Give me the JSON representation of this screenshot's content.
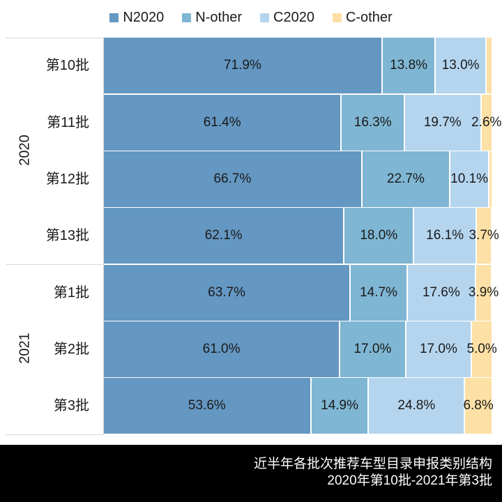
{
  "chart_data": {
    "type": "bar",
    "orientation": "horizontal",
    "stacked": "percent",
    "title": "近半年各批次推荐车型目录申报类别结构",
    "subtitle": "2020年第10批-2021年第3批",
    "groups": [
      {
        "year": "2020",
        "categories": [
          "第10批",
          "第11批",
          "第12批",
          "第13批"
        ]
      },
      {
        "year": "2021",
        "categories": [
          "第1批",
          "第2批",
          "第3批"
        ]
      }
    ],
    "categories": [
      "第10批",
      "第11批",
      "第12批",
      "第13批",
      "第1批",
      "第2批",
      "第3批"
    ],
    "series": [
      {
        "name": "N2020",
        "color": "#6497c2",
        "values": [
          71.9,
          61.4,
          66.7,
          62.1,
          63.7,
          61.0,
          53.6
        ]
      },
      {
        "name": "N-other",
        "color": "#7fb6d3",
        "values": [
          13.8,
          16.3,
          22.7,
          18.0,
          14.7,
          17.0,
          14.9
        ]
      },
      {
        "name": "C2020",
        "color": "#b5d5ef",
        "values": [
          13.0,
          19.7,
          10.1,
          16.1,
          17.6,
          17.0,
          24.8
        ]
      },
      {
        "name": "C-other",
        "color": "#fde0a5",
        "values": [
          1.3,
          2.6,
          0.5,
          3.7,
          3.9,
          5.0,
          6.8
        ]
      }
    ],
    "data_labels": [
      [
        "71.9%",
        "13.8%",
        "13.0%",
        ""
      ],
      [
        "61.4%",
        "16.3%",
        "19.7%",
        "2.6%"
      ],
      [
        "66.7%",
        "22.7%",
        "10.1%",
        ""
      ],
      [
        "62.1%",
        "18.0%",
        "16.1%",
        "3.7%"
      ],
      [
        "63.7%",
        "14.7%",
        "17.6%",
        "3.9%"
      ],
      [
        "61.0%",
        "17.0%",
        "17.0%",
        "5.0%"
      ],
      [
        "53.6%",
        "14.9%",
        "24.8%",
        "6.8%"
      ]
    ],
    "xlabel": "",
    "ylabel": "",
    "xlim": [
      0,
      100
    ],
    "grid": false,
    "legend_position": "top"
  },
  "legend": {
    "items": [
      {
        "label": "N2020",
        "color": "#6497c2"
      },
      {
        "label": "N-other",
        "color": "#7fb6d3"
      },
      {
        "label": "C2020",
        "color": "#b5d5ef"
      },
      {
        "label": "C-other",
        "color": "#fde0a5"
      }
    ]
  },
  "axis": {
    "years": [
      "2020",
      "2021"
    ],
    "categories": [
      "第10批",
      "第11批",
      "第12批",
      "第13批",
      "第1批",
      "第2批",
      "第3批"
    ]
  },
  "footer": {
    "line1": "近半年各批次推荐车型目录申报类别结构",
    "line2": "2020年第10批-2021年第3批"
  }
}
